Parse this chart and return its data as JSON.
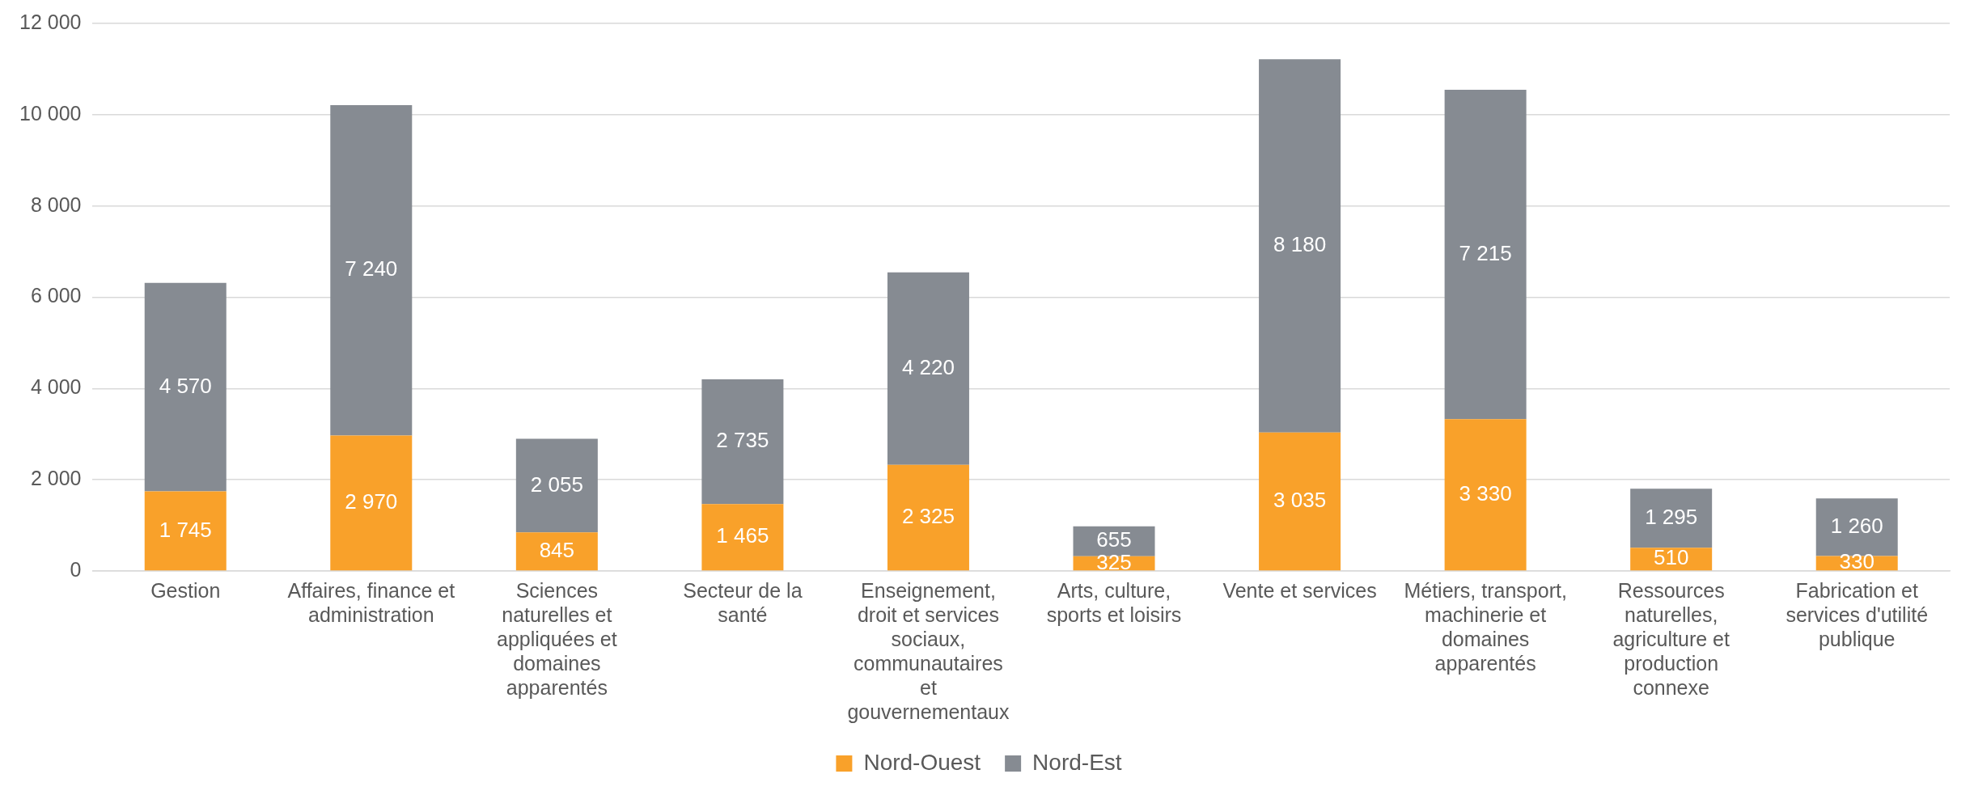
{
  "chart_data": {
    "type": "bar",
    "stacked": true,
    "categories": [
      "Gestion",
      "Affaires, finance et administration",
      "Sciences naturelles et appliquées et domaines apparentés",
      "Secteur de la santé",
      "Enseignement, droit et services sociaux, communautaires et gouvernementaux",
      "Arts, culture, sports et loisirs",
      "Vente et services",
      "Métiers, transport, machinerie et domaines apparentés",
      "Ressources naturelles, agriculture et production connexe",
      "Fabrication et services d'utilité publique"
    ],
    "series": [
      {
        "name": "Nord-Ouest",
        "color": "#f9a12a",
        "values": [
          1745,
          2970,
          845,
          1465,
          2325,
          325,
          3035,
          3330,
          510,
          330
        ],
        "value_labels": [
          "1 745",
          "2 970",
          "845",
          "1 465",
          "2 325",
          "325",
          "3 035",
          "3 330",
          "510",
          "330"
        ]
      },
      {
        "name": "Nord-Est",
        "color": "#868b92",
        "values": [
          4570,
          7240,
          2055,
          2735,
          4220,
          655,
          8180,
          7215,
          1295,
          1260
        ],
        "value_labels": [
          "4 570",
          "7 240",
          "2 055",
          "2 735",
          "4 220",
          "655",
          "8 180",
          "7 215",
          "1 295",
          "1 260"
        ]
      }
    ],
    "ylim": [
      0,
      12000
    ],
    "yticks": [
      {
        "value": 0,
        "label": "0"
      },
      {
        "value": 2000,
        "label": "2 000"
      },
      {
        "value": 4000,
        "label": "4 000"
      },
      {
        "value": 6000,
        "label": "6 000"
      },
      {
        "value": 8000,
        "label": "8 000"
      },
      {
        "value": 10000,
        "label": "10 000"
      },
      {
        "value": 12000,
        "label": "12 000"
      }
    ],
    "grid": "y",
    "legend": "bottom"
  }
}
